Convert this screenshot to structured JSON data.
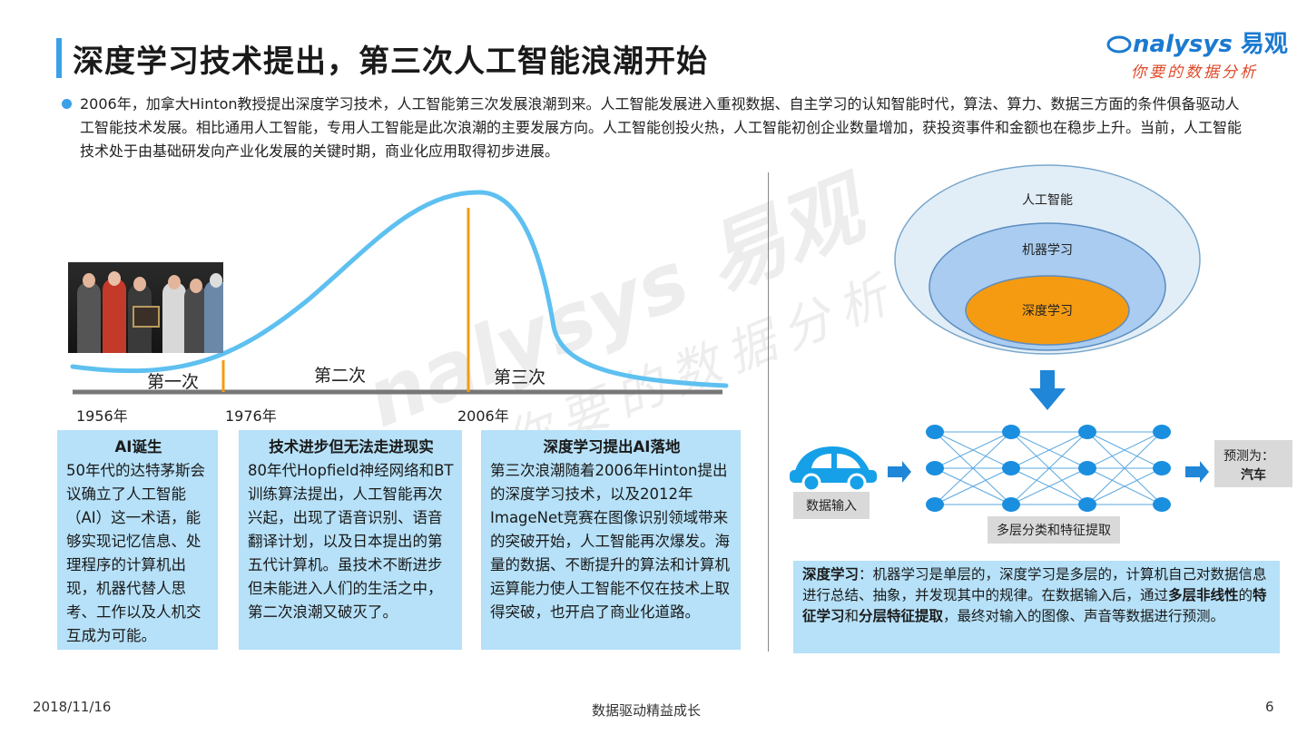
{
  "title": "深度学习技术提出，第三次人工智能浪潮开始",
  "logo": {
    "main": "nalysys",
    "cn": "易观",
    "sub": "你要的数据分析"
  },
  "intro": "2006年，加拿大Hinton教授提出深度学习技术，人工智能第三次发展浪潮到来。人工智能发展进入重视数据、自主学习的认知智能时代，算法、算力、数据三方面的条件俱备驱动人工智能技术发展。相比通用人工智能，专用人工智能是此次浪潮的主要发展方向。人工智能创投火热，人工智能初创企业数量增加，获投资事件和金额也在稳步上升。当前，人工智能技术处于由基础研发向产业化发展的关键时期，商业化应用取得初步进展。",
  "timeline": {
    "waves": [
      "第一次",
      "第二次",
      "第三次"
    ],
    "years": [
      "1956年",
      "1976年",
      "2006年"
    ]
  },
  "boxes": [
    {
      "title": "AI诞生",
      "text": "50年代的达特茅斯会议确立了人工智能（AI）这一术语，能够实现记忆信息、处理程序的计算机出现，机器代替人思考、工作以及人机交互成为可能。"
    },
    {
      "title": "技术进步但无法走进现实",
      "text": "80年代Hopfield神经网络和BT训练算法提出，人工智能再次兴起，出现了语音识别、语音翻译计划，以及日本提出的第五代计算机。虽技术不断进步但未能进入人们的生活之中，第二次浪潮又破灭了。"
    },
    {
      "title": "深度学习提出AI落地",
      "text": "第三次浪潮随着2006年Hinton提出的深度学习技术，以及2012年ImageNet竞赛在图像识别领域带来的突破开始，人工智能再次爆发。海量的数据、不断提升的算法和计算机运算能力使人工智能不仅在技术上取得突破，也开启了商业化道路。"
    }
  ],
  "venn": {
    "outer": "人工智能",
    "middle": "机器学习",
    "inner": "深度学习"
  },
  "network": {
    "input_label": "数据输入",
    "hidden_label": "多层分类和特征提取",
    "output_label": "预测为：",
    "output_value": "汽车"
  },
  "deep_box": {
    "term": "深度学习",
    "p1": "：机器学习是单层的，深度学习是多层的，计算机自己对数据信息进行总结、抽象，并发现其中的规律。在数据输入后，通过",
    "b1": "多层非线性",
    "p2": "的",
    "b2": "特征学习",
    "p3": "和",
    "b3": "分层特征提取",
    "p4": "，最终对输入的图像、声音等数据进行预测。"
  },
  "footer": {
    "date": "2018/11/16",
    "center": "数据驱动精益成长",
    "page": "6"
  },
  "colors": {
    "accent": "#3aa0e8",
    "curve": "#5ec0f0",
    "marker": "#f39c12",
    "box": "#b6e1f8",
    "inner": "#f59b12"
  },
  "icons": {
    "photo": "photo-conference-group",
    "car": "car-icon",
    "arrow": "down-arrow-icon"
  }
}
